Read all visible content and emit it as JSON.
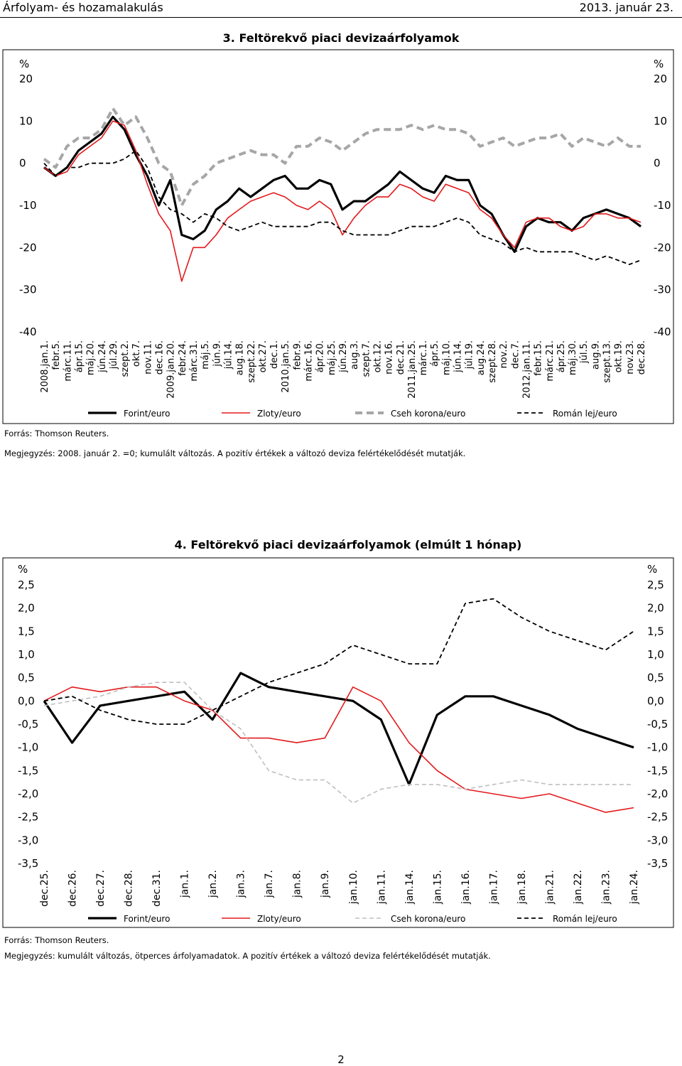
{
  "header": {
    "left": "Árfolyam- és hozamalakulás",
    "right": "2013. január 23."
  },
  "chart3": {
    "notes": {
      "source": "Forrás: Thomson Reuters.",
      "remark": "Megjegyzés: 2008. január 2. =0; kumulált változás. A pozitív értékek a változó deviza felértékelődését mutatják."
    }
  },
  "chart4": {
    "notes": {
      "source": "Forrás: Thomson Reuters.",
      "remark": "Megjegyzés: kumulált változás, ötperces árfolyamadatok. A pozitív értékek a változó deviza felértékelődését mutatják."
    }
  },
  "page_number": "2",
  "colors": {
    "forint": "#000000",
    "zloty": "#e31a1c",
    "czk3": "#a6a6a6",
    "czk4": "#bfbfbf",
    "ron": "#000000"
  },
  "chart_data": [
    {
      "type": "line",
      "title": "3. Feltörekvő piaci devizaárfolyamok",
      "ylabel_left": "%",
      "ylabel_right": "%",
      "ylim": [
        -40,
        20
      ],
      "yticks": [
        "20",
        "10",
        "0",
        "-10",
        "-20",
        "-30",
        "-40"
      ],
      "categories": [
        "2008.jan.1.",
        "febr.5.",
        "márc.11.",
        "ápr.15.",
        "máj.20.",
        "jún.24.",
        "júl.29.",
        "szept.2.",
        "okt.7.",
        "nov.11.",
        "dec.16.",
        "2009.jan.20.",
        "febr.24.",
        "márc.31.",
        "máj.5.",
        "jún.9.",
        "júl.14.",
        "aug.18.",
        "szept.22.",
        "okt.27.",
        "dec.1.",
        "2010.jan.5.",
        "febr.9.",
        "márc.16.",
        "ápr.20.",
        "máj.25.",
        "jún.29.",
        "aug.3.",
        "szept.7.",
        "okt.12.",
        "nov.16.",
        "dec.21.",
        "2011.jan.25.",
        "márc.1.",
        "ápr.5.",
        "máj.10.",
        "jún.14.",
        "júl.19.",
        "aug.24.",
        "szept.28.",
        "nov.2.",
        "dec.7.",
        "2012.jan.11.",
        "febr.15.",
        "márc.21.",
        "ápr.25.",
        "máj.30.",
        "júl.5.",
        "aug.9.",
        "szept.13.",
        "okt.19.",
        "nov.23.",
        "dec.28."
      ],
      "series": [
        {
          "name": "Forint/euro",
          "values": [
            -1,
            -3,
            -1,
            3,
            5,
            7,
            11,
            8,
            2,
            -3,
            -10,
            -4,
            -17,
            -18,
            -16,
            -11,
            -9,
            -6,
            -8,
            -6,
            -4,
            -3,
            -6,
            -6,
            -4,
            -5,
            -11,
            -9,
            -9,
            -7,
            -5,
            -2,
            -4,
            -6,
            -7,
            -3,
            -4,
            -4,
            -10,
            -12,
            -17,
            -21,
            -15,
            -13,
            -14,
            -14,
            -16,
            -13,
            -12,
            -11,
            -12,
            -13,
            -15
          ]
        },
        {
          "name": "Zloty/euro",
          "values": [
            -1,
            -3,
            -2,
            2,
            4,
            6,
            10,
            9,
            3,
            -5,
            -12,
            -16,
            -28,
            -20,
            -20,
            -17,
            -13,
            -11,
            -9,
            -8,
            -7,
            -8,
            -10,
            -11,
            -9,
            -11,
            -17,
            -13,
            -10,
            -8,
            -8,
            -5,
            -6,
            -8,
            -9,
            -5,
            -6,
            -7,
            -11,
            -13,
            -17,
            -20,
            -14,
            -13,
            -13,
            -15,
            -16,
            -15,
            -12,
            -12,
            -13,
            -13,
            -14
          ]
        },
        {
          "name": "Cseh korona/euro",
          "values": [
            1,
            -1,
            4,
            6,
            6,
            8,
            13,
            9,
            11,
            6,
            0,
            -2,
            -10,
            -5,
            -3,
            0,
            1,
            2,
            3,
            2,
            2,
            0,
            4,
            4,
            6,
            5,
            3,
            5,
            7,
            8,
            8,
            8,
            9,
            8,
            9,
            8,
            8,
            7,
            4,
            5,
            6,
            4,
            5,
            6,
            6,
            7,
            4,
            6,
            5,
            4,
            6,
            4,
            4
          ]
        },
        {
          "name": "Román lej/euro",
          "values": [
            0,
            -3,
            -1,
            -1,
            0,
            0,
            0,
            1,
            3,
            -1,
            -8,
            -11,
            -12,
            -14,
            -12,
            -13,
            -15,
            -16,
            -15,
            -14,
            -15,
            -15,
            -15,
            -15,
            -14,
            -14,
            -16,
            -17,
            -17,
            -17,
            -17,
            -16,
            -15,
            -15,
            -15,
            -14,
            -13,
            -14,
            -17,
            -18,
            -19,
            -21,
            -20,
            -21,
            -21,
            -21,
            -21,
            -22,
            -23,
            -22,
            -23,
            -24,
            -23
          ]
        }
      ],
      "legend": "bottom"
    },
    {
      "type": "line",
      "title": "4. Feltörekvő piaci devizaárfolyamok (elmúlt 1 hónap)",
      "ylabel_left": "%",
      "ylabel_right": "%",
      "ylim": [
        -3.5,
        2.5
      ],
      "yticks": [
        "2,5",
        "2,0",
        "1,5",
        "1,0",
        "0,5",
        "0,0",
        "-0,5",
        "-1,0",
        "-1,5",
        "-2,0",
        "-2,5",
        "-3,0",
        "-3,5"
      ],
      "categories": [
        "dec.25.",
        "dec.26.",
        "dec.27.",
        "dec.28.",
        "dec.31.",
        "jan.1.",
        "jan.2.",
        "jan.3.",
        "jan.7.",
        "jan.8.",
        "jan.9.",
        "jan.10.",
        "jan.11.",
        "jan.14.",
        "jan.15.",
        "jan.16.",
        "jan.17.",
        "jan.18.",
        "jan.21.",
        "jan.22.",
        "jan.23.",
        "jan.24."
      ],
      "series": [
        {
          "name": "Forint/euro",
          "values": [
            0.0,
            -0.9,
            -0.1,
            0.0,
            0.1,
            0.2,
            -0.4,
            0.6,
            0.3,
            0.2,
            0.1,
            0.0,
            -0.4,
            -1.8,
            -0.3,
            0.1,
            0.1,
            -0.1,
            -0.3,
            -0.6,
            -0.8,
            -1.0
          ]
        },
        {
          "name": "Zloty/euro",
          "values": [
            0.0,
            0.3,
            0.2,
            0.3,
            0.3,
            0.0,
            -0.2,
            -0.8,
            -0.8,
            -0.9,
            -0.8,
            0.3,
            0.0,
            -0.9,
            -1.5,
            -1.9,
            -2.0,
            -2.1,
            -2.0,
            -2.2,
            -2.4,
            -2.3
          ]
        },
        {
          "name": "Cseh korona/euro",
          "values": [
            -0.1,
            0.0,
            0.1,
            0.3,
            0.4,
            0.4,
            -0.2,
            -0.6,
            -1.5,
            -1.7,
            -1.7,
            -2.2,
            -1.9,
            -1.8,
            -1.8,
            -1.9,
            -1.8,
            -1.7,
            -1.8,
            -1.8,
            -1.8,
            -1.8
          ]
        },
        {
          "name": "Román lej/euro",
          "values": [
            0.0,
            0.1,
            -0.2,
            -0.4,
            -0.5,
            -0.5,
            -0.2,
            0.1,
            0.4,
            0.6,
            0.8,
            1.2,
            1.0,
            0.8,
            0.8,
            2.1,
            2.2,
            1.8,
            1.5,
            1.3,
            1.1,
            1.5
          ]
        }
      ],
      "legend": "bottom"
    }
  ]
}
